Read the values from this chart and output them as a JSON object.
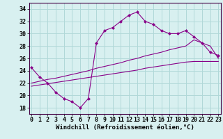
{
  "xlabel": "Windchill (Refroidissement éolien,°C)",
  "background_color": "#d8f0f0",
  "grid_color": "#b0d8d8",
  "line_color": "#880088",
  "x": [
    0,
    1,
    2,
    3,
    4,
    5,
    6,
    7,
    8,
    9,
    10,
    11,
    12,
    13,
    14,
    15,
    16,
    17,
    18,
    19,
    20,
    21,
    22,
    23
  ],
  "line1_y": [
    24.5,
    23.0,
    22.0,
    20.5,
    19.5,
    19.0,
    18.0,
    19.5,
    28.5,
    30.5,
    31.0,
    32.0,
    33.0,
    33.5,
    32.0,
    31.5,
    30.5,
    30.0,
    30.0,
    30.5,
    29.5,
    28.5,
    27.0,
    26.5
  ],
  "line2_y": [
    22.0,
    22.3,
    22.6,
    22.8,
    23.1,
    23.4,
    23.7,
    24.0,
    24.4,
    24.7,
    25.0,
    25.3,
    25.7,
    26.0,
    26.4,
    26.7,
    27.0,
    27.4,
    27.7,
    28.0,
    29.0,
    28.5,
    28.0,
    26.0
  ],
  "line3_y": [
    21.5,
    21.7,
    21.9,
    22.1,
    22.3,
    22.5,
    22.7,
    22.9,
    23.1,
    23.3,
    23.5,
    23.7,
    23.9,
    24.1,
    24.4,
    24.6,
    24.8,
    25.0,
    25.2,
    25.4,
    25.5,
    25.5,
    25.5,
    25.5
  ],
  "ylim": [
    17,
    35
  ],
  "yticks": [
    18,
    20,
    22,
    24,
    26,
    28,
    30,
    32,
    34
  ],
  "xticks": [
    0,
    1,
    2,
    3,
    4,
    5,
    6,
    7,
    8,
    9,
    10,
    11,
    12,
    13,
    14,
    15,
    16,
    17,
    18,
    19,
    20,
    21,
    22,
    23
  ],
  "xlabel_fontsize": 6.5,
  "tick_fontsize": 6,
  "markersize": 2.5
}
